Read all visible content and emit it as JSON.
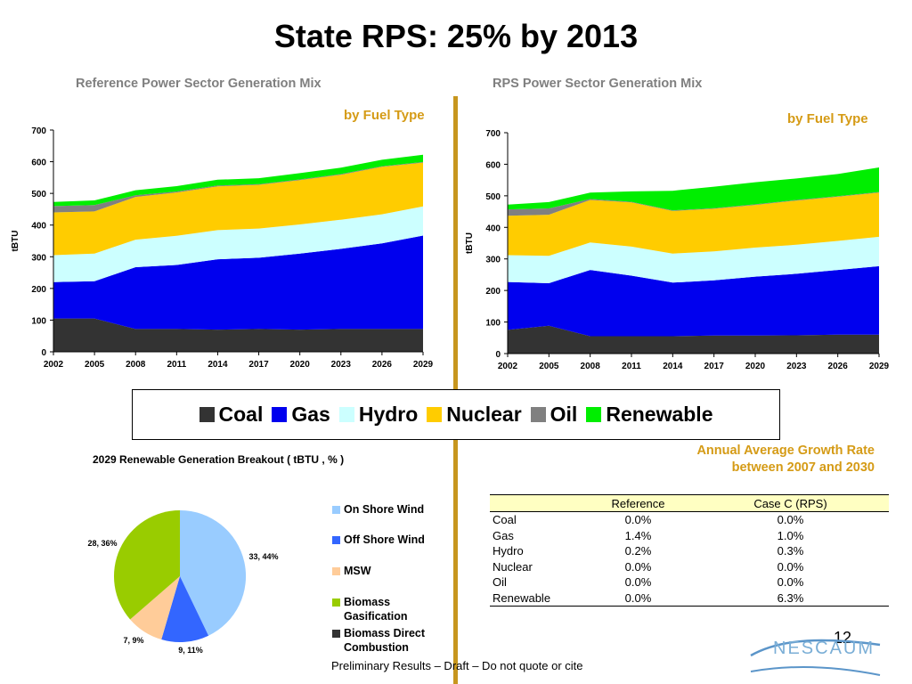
{
  "title": "State RPS: 25% by 2013",
  "fuel_types": [
    {
      "name": "Coal",
      "color": "#333333"
    },
    {
      "name": "Gas",
      "color": "#0000ee"
    },
    {
      "name": "Hydro",
      "color": "#ccffff"
    },
    {
      "name": "Nuclear",
      "color": "#ffcc00"
    },
    {
      "name": "Oil",
      "color": "#808080"
    },
    {
      "name": "Renewable",
      "color": "#00ee00"
    }
  ],
  "chart_data": [
    {
      "type": "area",
      "stacked": true,
      "title": "Reference Power Sector Generation Mix",
      "subtitle": "by Fuel Type",
      "xlabel": "",
      "ylabel": "tBTU",
      "ylim": [
        0,
        700
      ],
      "yticks": [
        0,
        100,
        200,
        300,
        400,
        500,
        600,
        700
      ],
      "x": [
        2002,
        2005,
        2008,
        2011,
        2014,
        2017,
        2020,
        2023,
        2026,
        2029
      ],
      "series": [
        {
          "name": "Coal",
          "values": [
            105,
            105,
            72,
            72,
            70,
            72,
            70,
            72,
            72,
            72
          ]
        },
        {
          "name": "Gas",
          "values": [
            115,
            118,
            195,
            202,
            222,
            225,
            240,
            253,
            270,
            295
          ]
        },
        {
          "name": "Hydro",
          "values": [
            85,
            87,
            87,
            92,
            92,
            92,
            92,
            92,
            92,
            92
          ]
        },
        {
          "name": "Nuclear",
          "values": [
            135,
            133,
            135,
            137,
            138,
            138,
            140,
            142,
            150,
            138
          ]
        },
        {
          "name": "Oil",
          "values": [
            20,
            20,
            5,
            3,
            3,
            2,
            2,
            2,
            2,
            2
          ]
        },
        {
          "name": "Renewable",
          "values": [
            13,
            15,
            16,
            17,
            18,
            19,
            20,
            20,
            20,
            23
          ]
        }
      ]
    },
    {
      "type": "area",
      "stacked": true,
      "title": "RPS Power Sector Generation Mix",
      "subtitle": "by Fuel Type",
      "xlabel": "",
      "ylabel": "tBTU",
      "ylim": [
        0,
        700
      ],
      "yticks": [
        0,
        100,
        200,
        300,
        400,
        500,
        600,
        700
      ],
      "x": [
        2002,
        2005,
        2008,
        2011,
        2014,
        2017,
        2020,
        2023,
        2026,
        2029
      ],
      "series": [
        {
          "name": "Coal",
          "values": [
            75,
            88,
            55,
            55,
            55,
            57,
            57,
            58,
            60,
            60
          ]
        },
        {
          "name": "Gas",
          "values": [
            152,
            135,
            210,
            192,
            170,
            175,
            187,
            195,
            205,
            217
          ]
        },
        {
          "name": "Hydro",
          "values": [
            85,
            87,
            87,
            92,
            92,
            92,
            92,
            92,
            92,
            93
          ]
        },
        {
          "name": "Nuclear",
          "values": [
            125,
            130,
            135,
            140,
            135,
            135,
            135,
            140,
            140,
            140
          ]
        },
        {
          "name": "Oil",
          "values": [
            20,
            20,
            3,
            2,
            2,
            2,
            2,
            2,
            2,
            2
          ]
        },
        {
          "name": "Renewable",
          "values": [
            15,
            20,
            20,
            33,
            62,
            68,
            70,
            68,
            70,
            78
          ]
        }
      ]
    },
    {
      "type": "pie",
      "title": "2029 Renewable Generation Breakout ( tBTU , % )",
      "slices": [
        {
          "name": "On Shore Wind",
          "value": 33,
          "percent": 44,
          "label": "33, 44%",
          "color": "#99ccff"
        },
        {
          "name": "Off Shore Wind",
          "value": 9,
          "percent": 11,
          "label": "9, 11%",
          "color": "#3366ff"
        },
        {
          "name": "MSW",
          "value": 7,
          "percent": 9,
          "label": "7, 9%",
          "color": "#ffcc99"
        },
        {
          "name": "Biomass Gasification",
          "value": 28,
          "percent": 36,
          "label": "28, 36%",
          "color": "#99cc00"
        },
        {
          "name": "Biomass Direct Combustion",
          "value": 0,
          "percent": 0,
          "label": "",
          "color": "#333333"
        }
      ]
    },
    {
      "type": "table",
      "title": "Annual Average Growth Rate between 2007 and 2030",
      "columns": [
        "",
        "Reference",
        "Case C  (RPS)"
      ],
      "rows": [
        [
          "Coal",
          "0.0%",
          "0.0%"
        ],
        [
          "Gas",
          "1.4%",
          "1.0%"
        ],
        [
          "Hydro",
          "0.2%",
          "0.3%"
        ],
        [
          "Nuclear",
          "0.0%",
          "0.0%"
        ],
        [
          "Oil",
          "0.0%",
          "0.0%"
        ],
        [
          "Renewable",
          "0.0%",
          "6.3%"
        ]
      ]
    }
  ],
  "growth_title_line1": "Annual Average Growth Rate",
  "growth_title_line2": "between 2007 and 2030",
  "page_number": "12",
  "footer": "Preliminary Results – Draft – Do not quote or cite",
  "logo_text": "NESCAUM"
}
